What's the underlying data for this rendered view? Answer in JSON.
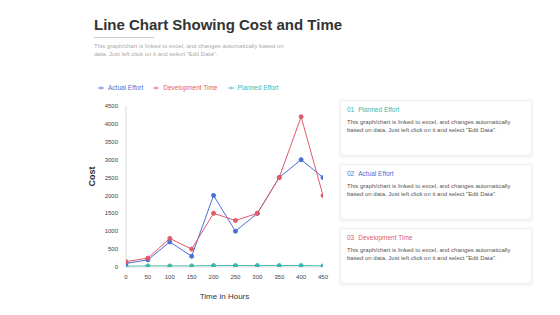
{
  "chart_data": {
    "type": "line",
    "title": "Line Chart Showing Cost and Time",
    "subtitle": "This graph/chart is linked to excel, and changes automatically based on data. Just left click on it and select \"Edit Data\".",
    "x": [
      0,
      50,
      100,
      150,
      200,
      250,
      300,
      350,
      400,
      450
    ],
    "series": [
      {
        "name": "Planned Effort",
        "color": "#3bb7ae",
        "values": [
          20,
          30,
          30,
          30,
          40,
          40,
          40,
          40,
          40,
          30
        ]
      },
      {
        "name": "Actual Effort",
        "color": "#4a6fd6",
        "values": [
          100,
          200,
          700,
          300,
          2000,
          1000,
          1500,
          2500,
          3000,
          2500
        ]
      },
      {
        "name": "Development Time",
        "color": "#e05a6b",
        "values": [
          150,
          250,
          800,
          500,
          1500,
          1300,
          1500,
          2500,
          4200,
          2000
        ]
      }
    ],
    "xlim": [
      0,
      450
    ],
    "xticks": [
      0,
      50,
      100,
      150,
      200,
      250,
      300,
      350,
      400,
      450
    ],
    "ylim": [
      0,
      4500
    ],
    "yticks": [
      0,
      500,
      1000,
      1500,
      2000,
      2500,
      3000,
      3500,
      4000,
      4500
    ],
    "x_label": "Time in Hours",
    "y_label": "Cost",
    "legend": "top",
    "grid": false,
    "marker": "circle",
    "annotations": [
      {
        "number": "01",
        "heading": "Planned Effort",
        "text": "This graph/chart is linked to excel, and changes automatically based on data. Just left click on it and select \"Edit Data\"."
      },
      {
        "number": "02",
        "heading": "Actual Effort",
        "text": "This graph/chart is linked to excel, and changes automatically based on data. Just left click on it and select \"Edit Data\"."
      },
      {
        "number": "03",
        "heading": "Development Time",
        "text": "This graph/chart is linked to excel, and changes automatically based on data. Just left click on it and select \"Edit Data\"."
      }
    ]
  }
}
